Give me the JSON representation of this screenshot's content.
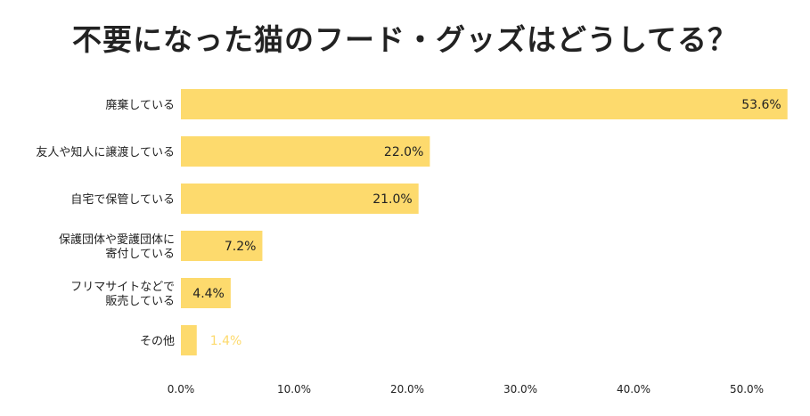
{
  "chart_data": {
    "type": "bar",
    "orientation": "horizontal",
    "title": "不要になった猫のフード・グッズはどうしてる？",
    "categories": [
      [
        "廃棄している"
      ],
      [
        "友人や知人に譲渡している"
      ],
      [
        "自宅で保管している"
      ],
      [
        "保護団体や愛護団体に",
        "寄付している"
      ],
      [
        "フリマサイトなどで",
        "販売している"
      ],
      [
        "その他"
      ]
    ],
    "values": [
      53.6,
      22.0,
      21.0,
      7.2,
      4.4,
      1.4
    ],
    "value_labels": [
      "53.6%",
      "22.0%",
      "21.0%",
      "7.2%",
      "4.4%",
      "1.4%"
    ],
    "xlim": [
      0,
      53.6
    ],
    "xticks": [
      "0.0%",
      "10.0%",
      "20.0%",
      "30.0%",
      "40.0%",
      "50.0%"
    ],
    "xtick_values": [
      0,
      10,
      20,
      30,
      40,
      50
    ],
    "grid": false,
    "legend": "none",
    "colors": {
      "bar": "#FDDA6D",
      "label_inside": "#222222",
      "label_outside": "#FDDA6D",
      "text": "#222222"
    }
  }
}
